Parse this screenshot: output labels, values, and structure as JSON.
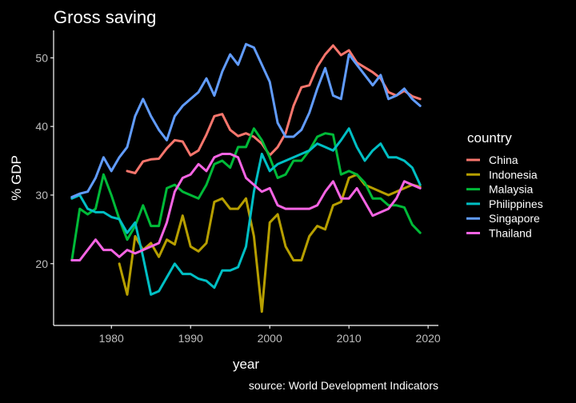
{
  "chart_data": {
    "type": "line",
    "title": "Gross saving",
    "xlabel": "year",
    "ylabel": "% GDP",
    "caption": "source: World Development Indicators",
    "xlim": [
      1972.7,
      2021.3
    ],
    "ylim": [
      11,
      54
    ],
    "xticks": [
      1980,
      1990,
      2000,
      2010,
      2020
    ],
    "yticks": [
      20,
      30,
      40,
      50
    ],
    "grid": false,
    "legend": {
      "title": "country",
      "position": "right"
    },
    "series": [
      {
        "name": "China",
        "color": "#F8766D",
        "x": [
          1982,
          1983,
          1984,
          1985,
          1986,
          1987,
          1988,
          1989,
          1990,
          1991,
          1992,
          1993,
          1994,
          1995,
          1996,
          1997,
          1998,
          1999,
          2000,
          2001,
          2002,
          2003,
          2004,
          2005,
          2006,
          2007,
          2008,
          2009,
          2010,
          2011,
          2012,
          2013,
          2014,
          2015,
          2016,
          2017,
          2018,
          2019
        ],
        "y": [
          33.5,
          33.2,
          34.9,
          35.2,
          35.3,
          36.8,
          38.0,
          37.8,
          35.8,
          36.5,
          38.8,
          41.5,
          41.8,
          39.5,
          38.6,
          39.0,
          38.5,
          37.5,
          35.8,
          37.0,
          39.0,
          43.0,
          45.7,
          46.0,
          48.7,
          50.5,
          51.8,
          50.4,
          51.1,
          49.3,
          48.6,
          47.9,
          47.0,
          45.0,
          44.5,
          45.2,
          44.4,
          44.0
        ]
      },
      {
        "name": "Indonesia",
        "color": "#B79F00",
        "x": [
          1981,
          1982,
          1983,
          1984,
          1985,
          1986,
          1987,
          1988,
          1989,
          1990,
          1991,
          1992,
          1993,
          1994,
          1995,
          1996,
          1997,
          1998,
          1999,
          2000,
          2001,
          2002,
          2003,
          2004,
          2005,
          2006,
          2007,
          2008,
          2009,
          2010,
          2011,
          2012,
          2013,
          2014,
          2015,
          2016,
          2017,
          2018,
          2019
        ],
        "y": [
          20.0,
          15.5,
          24.0,
          22.0,
          23.0,
          21.0,
          23.5,
          22.8,
          27.0,
          22.5,
          21.8,
          23.0,
          29.0,
          29.5,
          28.0,
          28.0,
          29.5,
          24.0,
          13.0,
          26.0,
          27.2,
          22.5,
          20.5,
          20.5,
          24.0,
          25.5,
          25.0,
          28.5,
          29.0,
          32.5,
          33.0,
          31.5,
          31.0,
          30.5,
          30.0,
          30.5,
          31.0,
          31.5,
          31.2
        ]
      },
      {
        "name": "Malaysia",
        "color": "#00BA38",
        "x": [
          1975,
          1976,
          1977,
          1978,
          1979,
          1980,
          1981,
          1982,
          1983,
          1984,
          1985,
          1986,
          1987,
          1988,
          1989,
          1990,
          1991,
          1992,
          1993,
          1994,
          1995,
          1996,
          1997,
          1998,
          1999,
          2000,
          2001,
          2002,
          2003,
          2004,
          2005,
          2006,
          2007,
          2008,
          2009,
          2010,
          2011,
          2012,
          2013,
          2014,
          2015,
          2016,
          2017,
          2018,
          2019
        ],
        "y": [
          20.5,
          28.0,
          27.2,
          28.0,
          33.0,
          30.0,
          26.5,
          23.5,
          25.5,
          28.5,
          25.5,
          25.5,
          31.0,
          31.5,
          30.5,
          30.0,
          29.5,
          31.5,
          34.5,
          35.0,
          34.0,
          37.0,
          37.0,
          39.7,
          38.0,
          35.5,
          32.5,
          33.0,
          35.0,
          35.0,
          36.5,
          38.5,
          39.0,
          38.8,
          33.0,
          33.5,
          33.0,
          31.8,
          29.5,
          29.5,
          28.5,
          28.5,
          28.2,
          25.7,
          24.5
        ]
      },
      {
        "name": "Philippines",
        "color": "#00BFC4",
        "x": [
          1975,
          1976,
          1977,
          1978,
          1979,
          1980,
          1981,
          1982,
          1983,
          1984,
          1985,
          1986,
          1987,
          1988,
          1989,
          1990,
          1991,
          1992,
          1993,
          1994,
          1995,
          1996,
          1997,
          1998,
          1999,
          2000,
          2001,
          2002,
          2003,
          2004,
          2005,
          2006,
          2007,
          2008,
          2009,
          2010,
          2011,
          2012,
          2013,
          2014,
          2015,
          2016,
          2017,
          2018,
          2019
        ],
        "y": [
          29.5,
          30.0,
          28.0,
          27.5,
          27.5,
          26.8,
          26.5,
          24.5,
          26.0,
          21.0,
          15.5,
          16.0,
          18.0,
          20.0,
          18.5,
          18.5,
          17.8,
          17.5,
          16.5,
          19.0,
          19.0,
          19.5,
          22.5,
          30.5,
          36.0,
          33.5,
          34.5,
          35.0,
          35.5,
          36.0,
          36.5,
          37.5,
          37.0,
          36.5,
          38.0,
          39.7,
          37.0,
          35.0,
          36.5,
          37.5,
          35.5,
          35.5,
          35.0,
          34.0,
          31.5
        ]
      },
      {
        "name": "Singapore",
        "color": "#619CFF",
        "x": [
          1975,
          1976,
          1977,
          1978,
          1979,
          1980,
          1981,
          1982,
          1983,
          1984,
          1985,
          1986,
          1987,
          1988,
          1989,
          1990,
          1991,
          1992,
          1993,
          1994,
          1995,
          1996,
          1997,
          1998,
          1999,
          2000,
          2001,
          2002,
          2003,
          2004,
          2005,
          2006,
          2007,
          2008,
          2009,
          2010,
          2011,
          2012,
          2013,
          2014,
          2015,
          2016,
          2017,
          2018,
          2019
        ],
        "y": [
          29.7,
          30.2,
          30.5,
          32.5,
          35.5,
          33.5,
          35.5,
          37.0,
          41.5,
          44.0,
          41.5,
          39.5,
          38.0,
          41.5,
          43.0,
          44.0,
          45.0,
          47.0,
          44.5,
          48.0,
          50.5,
          49.0,
          52.0,
          51.5,
          49.0,
          46.5,
          40.5,
          38.5,
          38.5,
          39.5,
          42.0,
          45.5,
          48.5,
          44.5,
          44.0,
          50.5,
          49.0,
          47.5,
          46.0,
          47.5,
          44.0,
          44.5,
          45.5,
          44.0,
          43.0
        ]
      },
      {
        "name": "Thailand",
        "color": "#F564E3",
        "x": [
          1975,
          1976,
          1977,
          1978,
          1979,
          1980,
          1981,
          1982,
          1983,
          1984,
          1985,
          1986,
          1987,
          1988,
          1989,
          1990,
          1991,
          1992,
          1993,
          1994,
          1995,
          1996,
          1997,
          1998,
          1999,
          2000,
          2001,
          2002,
          2003,
          2004,
          2005,
          2006,
          2007,
          2008,
          2009,
          2010,
          2011,
          2012,
          2013,
          2014,
          2015,
          2016,
          2017,
          2018,
          2019
        ],
        "y": [
          20.5,
          20.5,
          22.0,
          23.5,
          22.0,
          22.0,
          21.0,
          22.0,
          21.5,
          22.0,
          22.5,
          23.0,
          26.0,
          30.5,
          32.5,
          33.0,
          34.5,
          33.5,
          35.5,
          36.0,
          36.0,
          35.5,
          32.5,
          31.5,
          30.5,
          31.0,
          28.5,
          28.0,
          28.0,
          28.0,
          28.0,
          28.5,
          30.5,
          32.0,
          29.5,
          29.5,
          31.0,
          29.0,
          27.0,
          27.5,
          28.0,
          29.5,
          32.0,
          31.5,
          31.0
        ]
      }
    ]
  }
}
